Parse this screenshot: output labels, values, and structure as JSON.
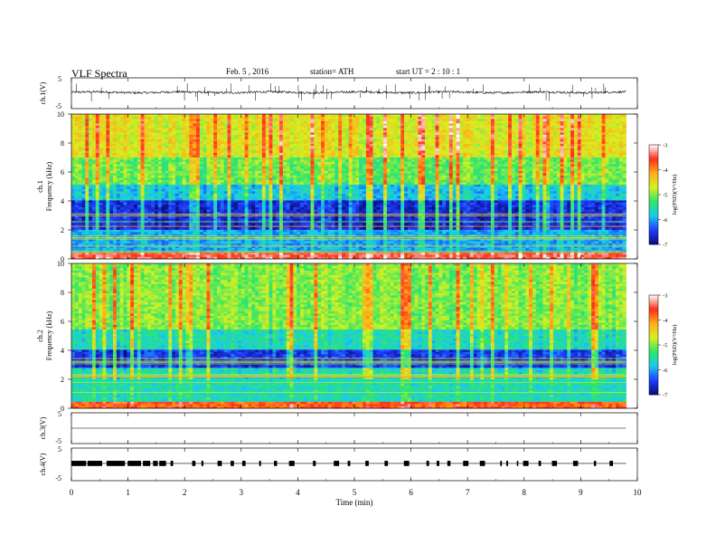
{
  "header": {
    "title": "VLF  Spectra",
    "date": "Feb. 5   , 2016",
    "station": "station= ATH",
    "start_ut": "start  UT  =    2  : 10 : 1"
  },
  "chart_data": [
    {
      "id": "ch1-waveform",
      "type": "line",
      "ylabel": "ch.1(V)",
      "ylim": [
        -5,
        5
      ],
      "yticks": [
        "5",
        "-5"
      ],
      "baseline_v": 0.3,
      "noise_amplitude_v": 0.35,
      "spike_amplitude_v": 2.5,
      "x_range_min": [
        0,
        9.8
      ]
    },
    {
      "id": "ch1-spectrogram",
      "type": "heatmap",
      "ylabel_channel": "ch.1",
      "ylabel": "Frequency  (kHz)",
      "ylim_khz": [
        0,
        10
      ],
      "yticks": [
        "0",
        "2",
        "4",
        "6",
        "8",
        "10"
      ],
      "x_range_min": [
        0,
        9.8
      ],
      "colorbar": {
        "label": "log(PSD)(V²/Hz)",
        "range": [
          -7,
          -3
        ],
        "ticks": [
          "-3",
          "-4",
          "-5",
          "-6",
          "-7"
        ],
        "colors": [
          "#0b0b7a",
          "#1f3bff",
          "#19c9f0",
          "#2ee66b",
          "#d6f021",
          "#ffae1a",
          "#ff2e1a",
          "#ffffff"
        ]
      },
      "noise_floor_log_psd": -6.7,
      "bands_khz": [
        {
          "from": 0,
          "to": 0.5,
          "level": -3.5
        },
        {
          "from": 0.5,
          "to": 2,
          "level": -6.0
        },
        {
          "from": 2,
          "to": 4,
          "level": -6.6
        },
        {
          "from": 4,
          "to": 5.2,
          "level": -5.8
        },
        {
          "from": 5.2,
          "to": 7,
          "level": -5.1
        },
        {
          "from": 7,
          "to": 10,
          "level": -4.6
        }
      ]
    },
    {
      "id": "ch2-spectrogram",
      "type": "heatmap",
      "ylabel_channel": "ch.2",
      "ylabel": "Frequency  (kHz)",
      "ylim_khz": [
        0,
        10
      ],
      "yticks": [
        "0",
        "2",
        "4",
        "6",
        "8",
        "10"
      ],
      "x_range_min": [
        0,
        9.8
      ],
      "colorbar": {
        "label": "log(PSD)(V²/Hz)",
        "range": [
          -7,
          -3
        ],
        "ticks": [
          "-3",
          "-4",
          "-5",
          "-6",
          "-7"
        ],
        "colors": [
          "#0b0b7a",
          "#1f3bff",
          "#19c9f0",
          "#2ee66b",
          "#d6f021",
          "#ffae1a",
          "#ff2e1a",
          "#ffffff"
        ]
      },
      "noise_floor_log_psd": -6.4,
      "bands_khz": [
        {
          "from": 0,
          "to": 0.5,
          "level": -3.8
        },
        {
          "from": 0.5,
          "to": 2.8,
          "level": -5.6
        },
        {
          "from": 2.8,
          "to": 4,
          "level": -6.5
        },
        {
          "from": 4,
          "to": 5.5,
          "level": -5.6
        },
        {
          "from": 5.5,
          "to": 10,
          "level": -5.0
        }
      ]
    },
    {
      "id": "ch3-waveform",
      "type": "line",
      "ylabel": "ch.3(V)",
      "ylim": [
        -5,
        5
      ],
      "yticks": [
        "5",
        "-5"
      ],
      "baseline_v": 0.0,
      "x_range_min": [
        0,
        9.8
      ]
    },
    {
      "id": "ch4-waveform",
      "type": "line",
      "ylabel": "ch.4(V)",
      "ylim": [
        -5,
        5
      ],
      "yticks": [
        "5",
        "-5"
      ],
      "baseline_v": 0.3,
      "pulse_height_v": 0.8,
      "x_range_min": [
        0,
        9.8
      ]
    }
  ],
  "x_axis": {
    "label": "Time  (min)",
    "range": [
      0,
      10
    ],
    "ticks": [
      "0",
      "1",
      "2",
      "3",
      "4",
      "5",
      "6",
      "7",
      "8",
      "9",
      "10"
    ]
  }
}
